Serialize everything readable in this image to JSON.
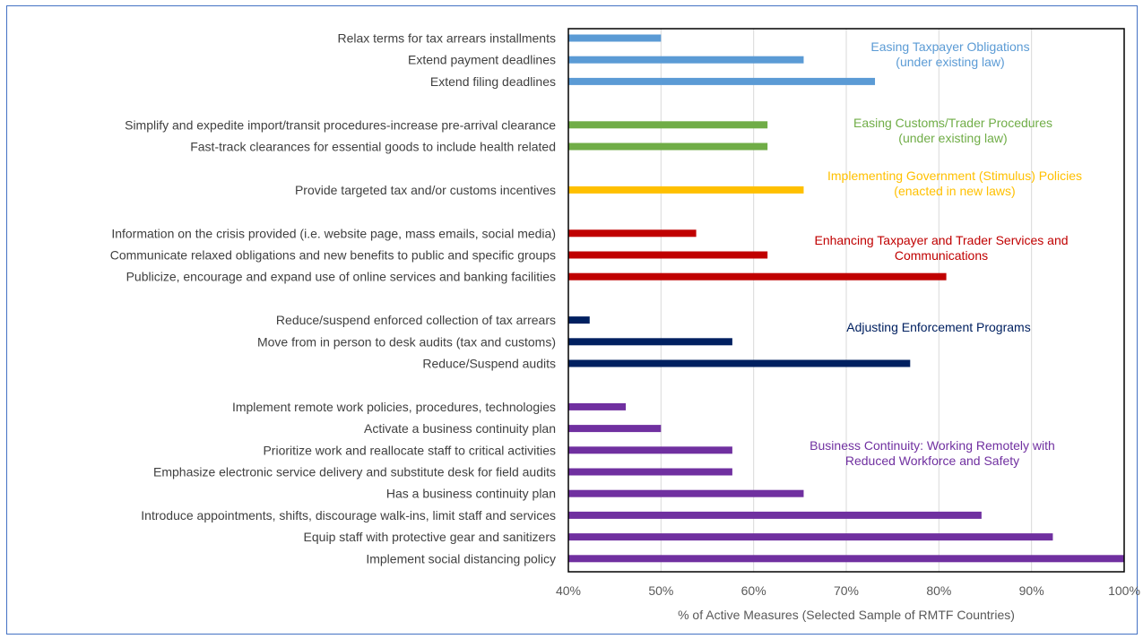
{
  "chart_data": {
    "type": "bar",
    "orientation": "horizontal",
    "xlabel": "% of Active Measures (Selected Sample of RMTF Countries)",
    "xlim": [
      40,
      100
    ],
    "xticks": [
      "40%",
      "50%",
      "60%",
      "70%",
      "80%",
      "90%",
      "100%"
    ],
    "grid": "vertical",
    "groups": [
      {
        "name": "Easing Taxpayer Obligations (under existing law)",
        "label_lines": [
          "Easing Taxpayer Obligations",
          "(under existing law)"
        ],
        "color": "#5b9bd5",
        "items": [
          {
            "category": "Relax terms for tax arrears installments",
            "value": 50
          },
          {
            "category": "Extend payment deadlines",
            "value": 65.4
          },
          {
            "category": "Extend filing deadlines",
            "value": 73.1
          }
        ]
      },
      {
        "name": "Easing Customs/Trader Procedures (under existing law)",
        "label_lines": [
          "Easing Customs/Trader Procedures",
          "(under existing law)"
        ],
        "color": "#70ad47",
        "items": [
          {
            "category": "Simplify and expedite import/transit procedures-increase pre-arrival clearance",
            "value": 61.5
          },
          {
            "category": "Fast-track clearances for essential goods to include health related",
            "value": 61.5
          }
        ]
      },
      {
        "name": "Implementing Government (Stimulus) Policies (enacted in new laws)",
        "label_lines": [
          "Implementing Government (Stimulus) Policies",
          "(enacted in new laws)"
        ],
        "color": "#ffc000",
        "items": [
          {
            "category": "Provide targeted tax and/or customs incentives",
            "value": 65.4
          }
        ]
      },
      {
        "name": "Enhancing Taxpayer and Trader Services and Communications",
        "label_lines": [
          "Enhancing Taxpayer and Trader Services and",
          "Communications"
        ],
        "color": "#c00000",
        "items": [
          {
            "category": "Information on the crisis provided (i.e. website page, mass emails, social media)",
            "value": 53.8
          },
          {
            "category": "Communicate relaxed obligations and new benefits to public and specific groups",
            "value": 61.5
          },
          {
            "category": "Publicize, encourage and expand use of online services and banking facilities",
            "value": 80.8
          }
        ]
      },
      {
        "name": "Adjusting Enforcement Programs",
        "label_lines": [
          "Adjusting Enforcement Programs"
        ],
        "color": "#002060",
        "items": [
          {
            "category": "Reduce/suspend enforced collection of tax arrears",
            "value": 42.3
          },
          {
            "category": "Move from in person to desk audits (tax and customs)",
            "value": 57.7
          },
          {
            "category": "Reduce/Suspend audits",
            "value": 76.9
          }
        ]
      },
      {
        "name": "Business Continuity: Working Remotely with Reduced Workforce and Safety",
        "label_lines": [
          "Business Continuity:  Working Remotely with",
          "Reduced Workforce and Safety"
        ],
        "color": "#7030a0",
        "items": [
          {
            "category": "Implement remote work policies, procedures, technologies",
            "value": 46.2
          },
          {
            "category": "Activate a business continuity plan",
            "value": 50
          },
          {
            "category": "Prioritize work and reallocate staff to critical activities",
            "value": 57.7
          },
          {
            "category": "Emphasize electronic service delivery and substitute desk for field audits",
            "value": 57.7
          },
          {
            "category": "Has a business continuity plan",
            "value": 65.4
          },
          {
            "category": "Introduce appointments, shifts, discourage walk-ins, limit staff and services",
            "value": 84.6
          },
          {
            "category": "Equip staff with protective gear and sanitizers",
            "value": 92.3
          },
          {
            "category": "Implement social distancing policy",
            "value": 100
          }
        ]
      }
    ]
  }
}
